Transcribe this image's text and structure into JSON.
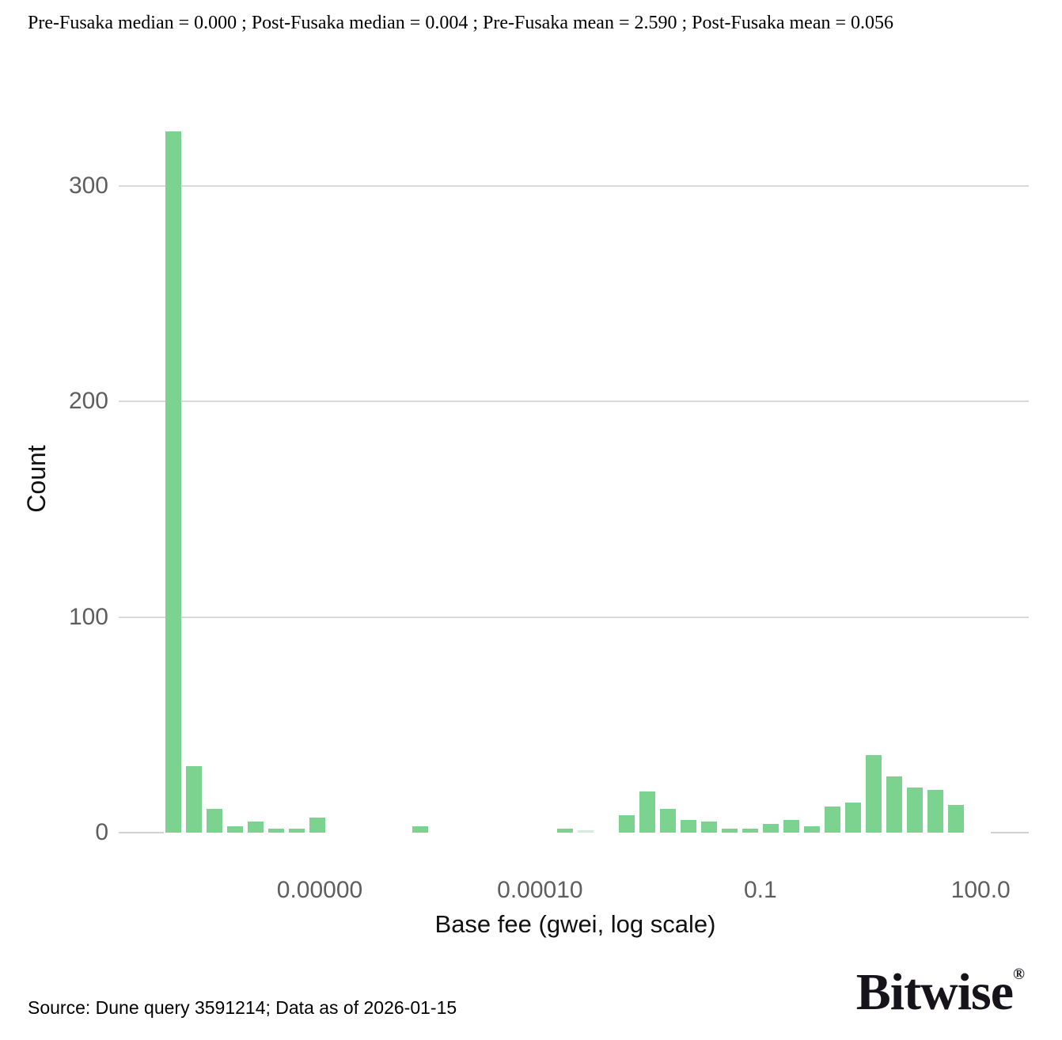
{
  "title": "Pre-Fusaka median = 0.000 ; Post-Fusaka median = 0.004 ; Pre-Fusaka mean = 2.590 ; Post-Fusaka mean = 0.056",
  "source": "Source: Dune query 3591214; Data as of 2026-01-15",
  "brand": {
    "name": "Bitwise",
    "registered": "®"
  },
  "colors": {
    "bar": "#7bd38f",
    "bar_muted": "#d5ecdb",
    "gridline": "#d9d9d9",
    "tick_text": "#5e5e5e",
    "text": "#111111"
  },
  "chart_data": {
    "type": "bar",
    "title": "Pre-Fusaka median = 0.000 ; Post-Fusaka median = 0.004 ; Pre-Fusaka mean = 2.590 ; Post-Fusaka mean = 0.056",
    "xlabel": "Base fee (gwei, log scale)",
    "ylabel": "Count",
    "x_scale": "log10",
    "grid": "horizontal",
    "legend": "none",
    "ylim": [
      0,
      340
    ],
    "y_ticks": [
      {
        "value": 0,
        "label": "0"
      },
      {
        "value": 100,
        "label": "100"
      },
      {
        "value": 200,
        "label": "200"
      },
      {
        "value": 300,
        "label": "300"
      }
    ],
    "x_ticks": [
      {
        "log10": -7,
        "label": "0.00000"
      },
      {
        "log10": -4,
        "label": "0.00010"
      },
      {
        "log10": -1,
        "label": "0.1"
      },
      {
        "log10": 2,
        "label": "100.0"
      }
    ],
    "bin_width_log10": 0.28,
    "bins": [
      {
        "log10": -8.99,
        "gwei_approx": "1.0e-9",
        "count": 325
      },
      {
        "log10": -8.71,
        "gwei_approx": "1.9e-9",
        "count": 31
      },
      {
        "log10": -8.43,
        "gwei_approx": "3.7e-9",
        "count": 11
      },
      {
        "log10": -8.15,
        "gwei_approx": "7.1e-9",
        "count": 3
      },
      {
        "log10": -7.87,
        "gwei_approx": "1.3e-8",
        "count": 5
      },
      {
        "log10": -7.59,
        "gwei_approx": "2.6e-8",
        "count": 2
      },
      {
        "log10": -7.31,
        "gwei_approx": "4.9e-8",
        "count": 2
      },
      {
        "log10": -7.03,
        "gwei_approx": "9.3e-8",
        "count": 7
      },
      {
        "log10": -5.63,
        "gwei_approx": "2.3e-6",
        "count": 3
      },
      {
        "log10": -3.66,
        "gwei_approx": "2.2e-4",
        "count": 2
      },
      {
        "log10": -3.38,
        "gwei_approx": "4.2e-4",
        "count": 1,
        "muted": true
      },
      {
        "log10": -2.82,
        "gwei_approx": "1.5e-3",
        "count": 8
      },
      {
        "log10": -2.54,
        "gwei_approx": "2.9e-3",
        "count": 19
      },
      {
        "log10": -2.26,
        "gwei_approx": "5.5e-3",
        "count": 11
      },
      {
        "log10": -1.98,
        "gwei_approx": "1.0e-2",
        "count": 6
      },
      {
        "log10": -1.7,
        "gwei_approx": "2.0e-2",
        "count": 5
      },
      {
        "log10": -1.42,
        "gwei_approx": "3.8e-2",
        "count": 2
      },
      {
        "log10": -1.14,
        "gwei_approx": "7.2e-2",
        "count": 2
      },
      {
        "log10": -0.86,
        "gwei_approx": "0.14",
        "count": 4
      },
      {
        "log10": -0.58,
        "gwei_approx": "0.26",
        "count": 6
      },
      {
        "log10": -0.3,
        "gwei_approx": "0.50",
        "count": 3
      },
      {
        "log10": -0.02,
        "gwei_approx": "0.95",
        "count": 12
      },
      {
        "log10": 0.26,
        "gwei_approx": "1.8",
        "count": 14
      },
      {
        "log10": 0.54,
        "gwei_approx": "3.5",
        "count": 36
      },
      {
        "log10": 0.82,
        "gwei_approx": "6.6",
        "count": 26
      },
      {
        "log10": 1.1,
        "gwei_approx": "12.6",
        "count": 21
      },
      {
        "log10": 1.38,
        "gwei_approx": "24.0",
        "count": 20
      },
      {
        "log10": 1.66,
        "gwei_approx": "45.7",
        "count": 13
      }
    ]
  }
}
